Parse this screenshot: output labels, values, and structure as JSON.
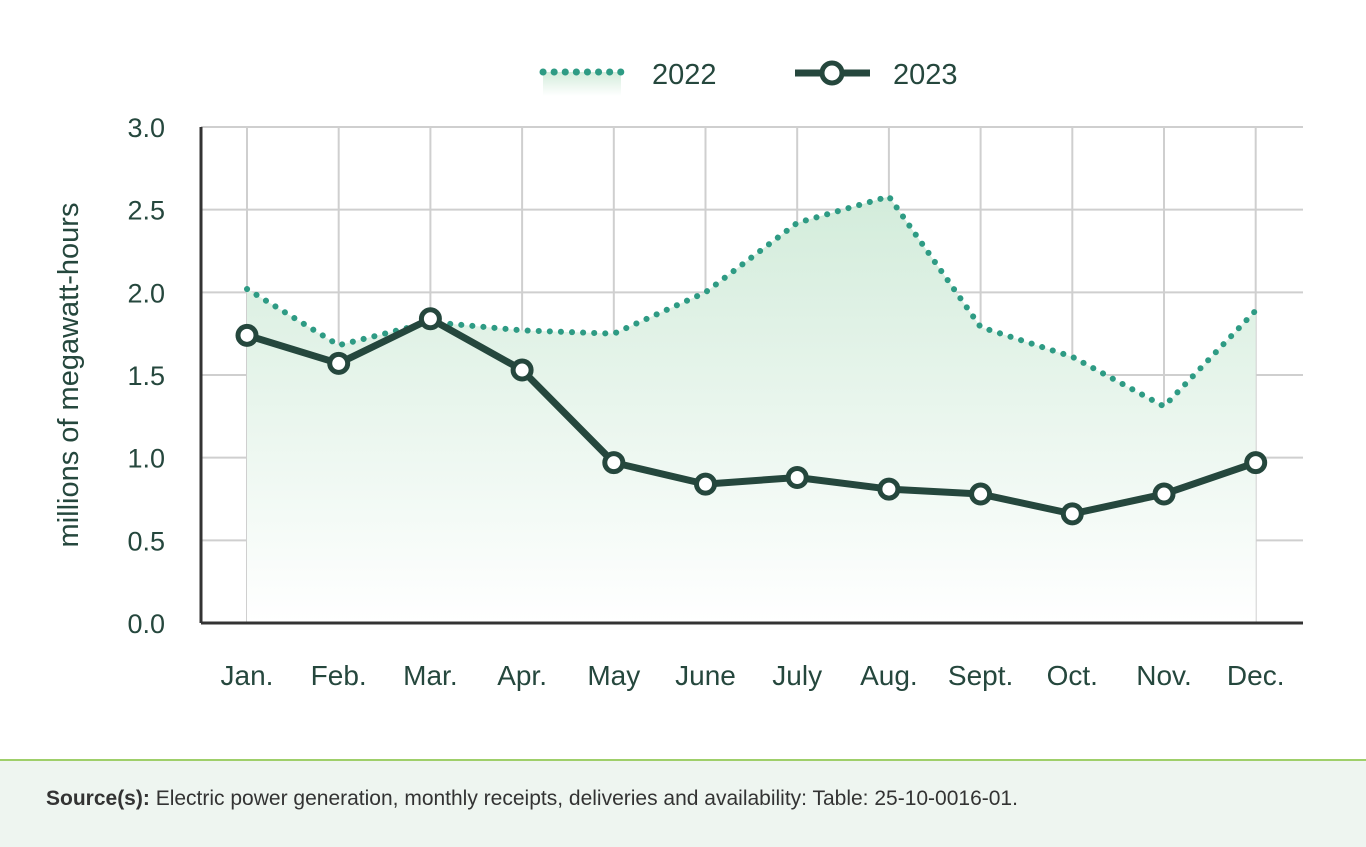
{
  "chart_data": {
    "type": "line",
    "title": "",
    "xlabel": "",
    "ylabel": "millions of megawatt-hours",
    "ylim": [
      0,
      3.0
    ],
    "yticks": [
      "0.0",
      "0.5",
      "1.0",
      "1.5",
      "2.0",
      "2.5",
      "3.0"
    ],
    "grid": true,
    "legend_placement": "top-center",
    "categories": [
      "Jan.",
      "Feb.",
      "Mar.",
      "Apr.",
      "May",
      "June",
      "July",
      "Aug.",
      "Sept.",
      "Oct.",
      "Nov.",
      "Dec."
    ],
    "series": [
      {
        "name": "2022",
        "style": "dotted-area",
        "color": "#2e9b84",
        "values": [
          2.02,
          1.68,
          1.82,
          1.77,
          1.75,
          2.0,
          2.42,
          2.58,
          1.79,
          1.61,
          1.31,
          1.89
        ]
      },
      {
        "name": "2023",
        "style": "solid-markers",
        "color": "#25473d",
        "values": [
          1.74,
          1.57,
          1.84,
          1.53,
          0.97,
          0.84,
          0.88,
          0.81,
          0.78,
          0.66,
          0.78,
          0.97
        ]
      }
    ]
  },
  "footer": {
    "source_label": "Source(s):",
    "source_text": " Electric power generation, monthly receipts, deliveries and availability: Table: 25-10-0016-01."
  }
}
